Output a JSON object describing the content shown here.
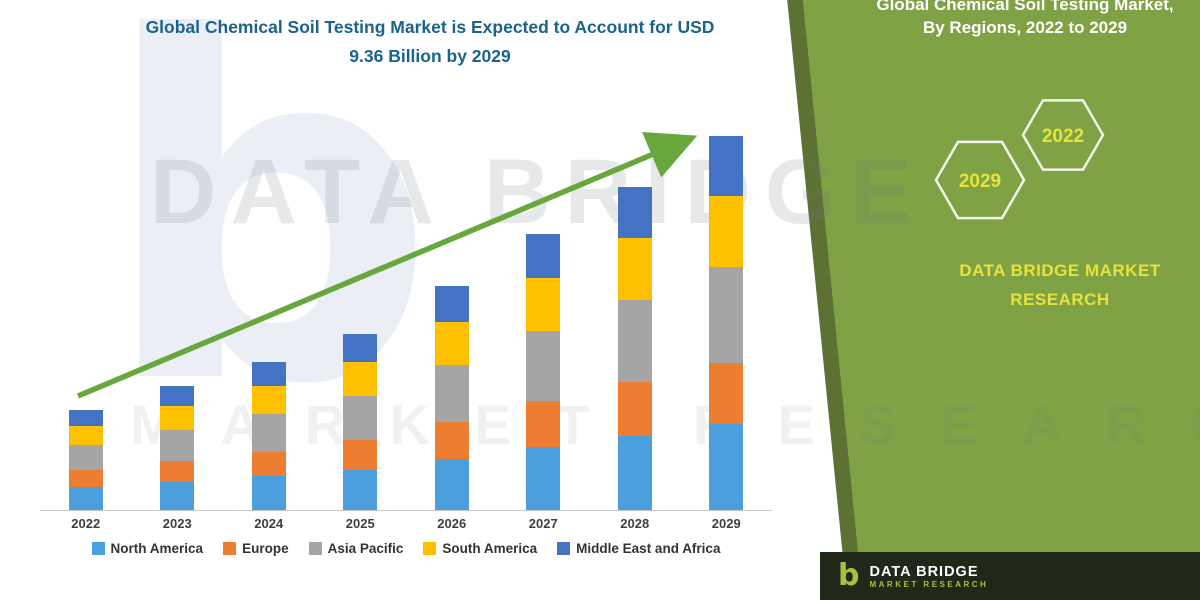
{
  "page_title": {
    "line1": "Global Chemical Soil Testing Market is Expected to Account for USD",
    "line2": "9.36 Billion by 2029"
  },
  "chart_data": {
    "type": "bar",
    "stacked": true,
    "title": "Global Chemical Soil Testing Market is Expected to Account for USD 9.36 Billion by 2029",
    "unit": "USD Billion",
    "categories": [
      "2022",
      "2023",
      "2024",
      "2025",
      "2026",
      "2027",
      "2028",
      "2029"
    ],
    "series": [
      {
        "name": "North America",
        "color": "#4a9fdc",
        "values": [
          0.58,
          0.71,
          0.85,
          1.01,
          1.29,
          1.59,
          1.86,
          2.15
        ]
      },
      {
        "name": "Europe",
        "color": "#ed7d31",
        "values": [
          0.41,
          0.51,
          0.61,
          0.73,
          0.92,
          1.14,
          1.34,
          1.54
        ]
      },
      {
        "name": "Asia Pacific",
        "color": "#a5a5a5",
        "values": [
          0.64,
          0.79,
          0.95,
          1.12,
          1.43,
          1.76,
          2.07,
          2.39
        ]
      },
      {
        "name": "South America",
        "color": "#ffc000",
        "values": [
          0.47,
          0.59,
          0.7,
          0.84,
          1.06,
          1.31,
          1.54,
          1.78
        ]
      },
      {
        "name": "Middle East and Africa",
        "color": "#4472c4",
        "values": [
          0.4,
          0.5,
          0.59,
          0.7,
          0.9,
          1.1,
          1.29,
          1.5
        ]
      }
    ],
    "totals": [
      2.5,
      3.1,
      3.7,
      4.4,
      5.6,
      6.9,
      8.1,
      9.36
    ],
    "ylim": [
      0,
      10
    ],
    "grid": false,
    "legend_position": "bottom",
    "trend_arrow": {
      "color": "#68a73e",
      "direction": "up-right"
    }
  },
  "side_panel": {
    "title_line1": "Global Chemical Soil Testing Market,",
    "title_line2": "By Regions, 2022 to 2029",
    "hexagons": [
      "2029",
      "2022"
    ],
    "brand_line1": "DATA BRIDGE MARKET",
    "brand_line2": "RESEARCH",
    "colors": {
      "background": "#7fa245",
      "edge": "#5c7233",
      "accent_text": "#e8e23c"
    }
  },
  "footer": {
    "brand": "DATA BRIDGE",
    "sub": "MARKET RESEARCH",
    "logo_glyph": "b"
  },
  "watermark": {
    "logo_glyph": "b",
    "text1": "DATA BRIDGE",
    "text2": "MARKET RESEARCH"
  }
}
